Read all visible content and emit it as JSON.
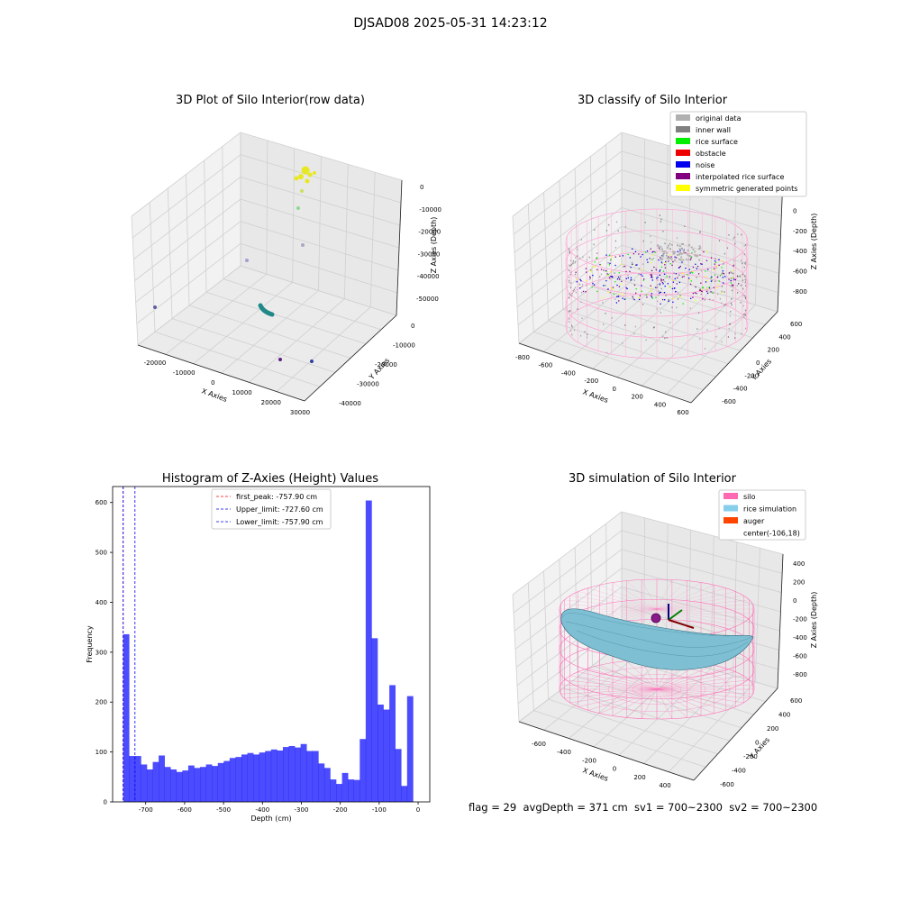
{
  "suptitle": "DJSAD08 2025-05-31 14:23:12",
  "panels": {
    "raw": {
      "title": "3D Plot of Silo Interior(row data)",
      "xlabel": "X Axies",
      "ylabel": "Y Axies",
      "zlabel": "Z Axies (Depth)",
      "xticks": [
        "-20000",
        "-10000",
        "0",
        "10000",
        "20000",
        "30000"
      ],
      "yticks": [
        "0",
        "-10000",
        "-20000",
        "-30000",
        "-40000"
      ],
      "zticks": [
        "0",
        "-10000",
        "-20000",
        "-30000",
        "-40000",
        "-50000"
      ]
    },
    "classify": {
      "title": "3D classify of Silo Interior",
      "xlabel": "X Axies",
      "ylabel": "Y Axies",
      "zlabel": "Z Axies (Depth)",
      "xticks": [
        "-800",
        "-600",
        "-400",
        "-200",
        "0",
        "200",
        "400",
        "600"
      ],
      "yticks": [
        "600",
        "400",
        "200",
        "0",
        "-200",
        "-400",
        "-600"
      ],
      "zticks": [
        "200",
        "0",
        "-200",
        "-400",
        "-600",
        "-800"
      ],
      "legend": [
        {
          "label": "original data",
          "color": "#b0b0b0"
        },
        {
          "label": "inner wall",
          "color": "#808080"
        },
        {
          "label": "rice surface",
          "color": "#00ee00"
        },
        {
          "label": "obstacle",
          "color": "#ee0000"
        },
        {
          "label": "noise",
          "color": "#0000ee"
        },
        {
          "label": "interpolated rice surface",
          "color": "#800080"
        },
        {
          "label": "symmetric generated points",
          "color": "#ffff00"
        }
      ]
    },
    "simulation": {
      "title": "3D simulation of Silo Interior",
      "xlabel": "X Axies",
      "ylabel": "Y Axies",
      "zlabel": "Z Axies (Depth)",
      "xticks": [
        "-600",
        "-400",
        "-200",
        "0",
        "200",
        "400"
      ],
      "yticks": [
        "600",
        "400",
        "200",
        "0",
        "-200",
        "-400",
        "-600"
      ],
      "zticks": [
        "400",
        "200",
        "0",
        "-200",
        "-400",
        "-600",
        "-800"
      ],
      "legend": [
        {
          "label": "silo",
          "color": "#ff69b4"
        },
        {
          "label": "rice simulation",
          "color": "#87ceeb"
        },
        {
          "label": "auger",
          "color": "#ff4500"
        },
        {
          "label": "center(-106,18)",
          "color": ""
        }
      ]
    }
  },
  "footer": "flag = 29  avgDepth = 371 cm  sv1 = 700~2300  sv2 = 700~2300",
  "chart_data": [
    {
      "type": "histogram",
      "title": "Histogram of Z-Axies (Height) Values",
      "xlabel": "Depth (cm)",
      "ylabel": "Frequency",
      "xlim": [
        -785,
        30
      ],
      "ylim": [
        0,
        632
      ],
      "xticks": [
        -700,
        -600,
        -500,
        -400,
        -300,
        -200,
        -100,
        0
      ],
      "yticks": [
        0,
        100,
        200,
        300,
        400,
        500,
        600
      ],
      "bar_color": "#0000ff",
      "bin_start": -757.9,
      "bin_width": 15.2,
      "values": [
        336,
        92,
        92,
        75,
        65,
        80,
        93,
        70,
        65,
        60,
        63,
        73,
        68,
        70,
        75,
        72,
        78,
        82,
        88,
        90,
        95,
        98,
        95,
        99,
        102,
        105,
        103,
        110,
        112,
        109,
        116,
        102,
        102,
        77,
        68,
        45,
        36,
        58,
        45,
        44,
        126,
        604,
        328,
        195,
        185,
        234,
        106,
        32,
        212
      ],
      "lines": [
        {
          "label": "first_peak: -757.90 cm",
          "x": -757.9,
          "color": "#ff0000"
        },
        {
          "label": "Upper_limit: -727.60 cm",
          "x": -727.6,
          "color": "#0000ff"
        },
        {
          "label": "Lower_limit: -757.90 cm",
          "x": -757.9,
          "color": "#0000ff"
        }
      ],
      "legend_position": "upper center"
    }
  ]
}
